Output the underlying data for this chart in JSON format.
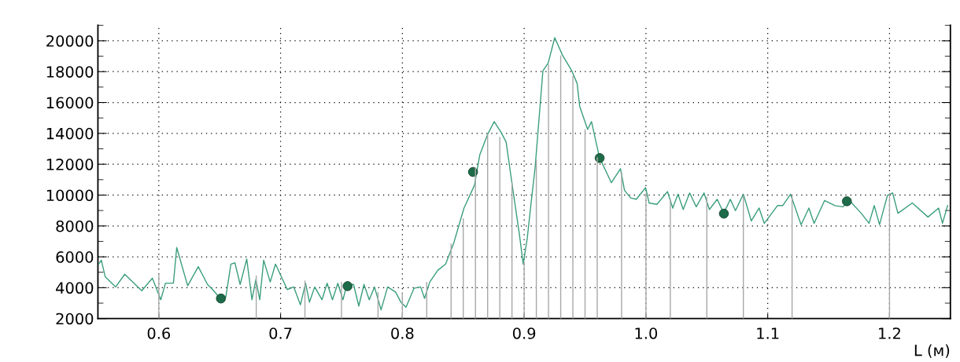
{
  "chart_data": {
    "type": "line",
    "xlabel": "L (м)",
    "xlim": [
      0.55,
      1.25
    ],
    "xticks": [
      {
        "value": 0.6,
        "label": "0.6"
      },
      {
        "value": 0.7,
        "label": "0.7"
      },
      {
        "value": 0.8,
        "label": "0.8"
      },
      {
        "value": 0.9,
        "label": "0.9"
      },
      {
        "value": 1.0,
        "label": "1.0"
      },
      {
        "value": 1.1,
        "label": "1.1"
      },
      {
        "value": 1.2,
        "label": "1.2"
      }
    ],
    "ylim": [
      2000,
      21000
    ],
    "yticks": [
      2000,
      4000,
      6000,
      8000,
      10000,
      12000,
      14000,
      16000,
      18000,
      20000
    ],
    "grid": true,
    "legend": false,
    "series": [
      {
        "type": "bar",
        "color": "#a8a8a8",
        "x": [
          0.6,
          0.68,
          0.72,
          0.75,
          0.78,
          0.8,
          0.82,
          0.84,
          0.85,
          0.86,
          0.87,
          0.88,
          0.89,
          0.9,
          0.91,
          0.92,
          0.93,
          0.94,
          0.95,
          0.96,
          0.98,
          1.0,
          1.02,
          1.05,
          1.08,
          1.12,
          1.2
        ],
        "values": [
          4870,
          4790,
          4460,
          4370,
          3720,
          3720,
          4370,
          6850,
          8500,
          11790,
          13940,
          13770,
          10800,
          5690,
          12290,
          18470,
          19050,
          17730,
          14260,
          12450,
          11460,
          10140,
          9730,
          9900,
          9980,
          9980,
          10140
        ]
      },
      {
        "marker": "none",
        "line_style": "solid",
        "color": "#3a9e7c",
        "x": [
          0.5506,
          0.5528,
          0.556,
          0.5646,
          0.572,
          0.586,
          0.5947,
          0.6016,
          0.6055,
          0.612,
          0.6147,
          0.6237,
          0.6324,
          0.64,
          0.6442,
          0.6496,
          0.655,
          0.6592,
          0.6625,
          0.6668,
          0.6722,
          0.6765,
          0.6797,
          0.6829,
          0.6861,
          0.6915,
          0.6958,
          0.7055,
          0.7108,
          0.7163,
          0.7205,
          0.7237,
          0.728,
          0.734,
          0.7382,
          0.7426,
          0.747,
          0.7512,
          0.7545,
          0.7599,
          0.7642,
          0.7685,
          0.7728,
          0.7771,
          0.7825,
          0.7879,
          0.7944,
          0.7988,
          0.803,
          0.8095,
          0.815,
          0.8182,
          0.8225,
          0.829,
          0.8355,
          0.842,
          0.8506,
          0.8592,
          0.8636,
          0.87,
          0.8754,
          0.8808,
          0.8852,
          0.8905,
          0.896,
          0.8992,
          0.9025,
          0.9057,
          0.909,
          0.9122,
          0.9154,
          0.9197,
          0.9251,
          0.9316,
          0.9391,
          0.9435,
          0.9456,
          0.9521,
          0.9553,
          0.9618,
          0.9716,
          0.9791,
          0.9824,
          0.9875,
          0.9921,
          0.9997,
          1.0026,
          1.009,
          1.0177,
          1.022,
          1.0263,
          1.0306,
          1.0359,
          1.0413,
          1.0477,
          1.0521,
          1.0585,
          1.0639,
          1.0693,
          1.0735,
          1.08,
          1.0865,
          1.0929,
          1.0972,
          1.108,
          1.1123,
          1.1187,
          1.1274,
          1.1338,
          1.1381,
          1.1467,
          1.1553,
          1.1617,
          1.1671,
          1.1768,
          1.1832,
          1.1875,
          1.1918,
          1.1983,
          1.2026,
          1.2069,
          1.2187,
          1.2316,
          1.2403,
          1.2435,
          1.2477
        ],
        "values": [
          5530,
          5780,
          4700,
          4050,
          4870,
          3800,
          4620,
          3220,
          4290,
          4290,
          6600,
          4130,
          5360,
          4210,
          3880,
          3380,
          3380,
          5530,
          5610,
          4210,
          5860,
          3220,
          4540,
          3220,
          5780,
          4370,
          5530,
          3880,
          4050,
          2890,
          4290,
          3060,
          4050,
          3220,
          4290,
          3220,
          4290,
          3220,
          4210,
          4210,
          2810,
          4210,
          3220,
          4050,
          2560,
          4050,
          3720,
          3060,
          2730,
          3960,
          4050,
          3310,
          4370,
          5120,
          5530,
          6850,
          9160,
          10640,
          12620,
          13940,
          14760,
          14100,
          13440,
          10480,
          7510,
          5530,
          7180,
          9490,
          11790,
          14930,
          18060,
          18550,
          20200,
          19050,
          18060,
          17230,
          15750,
          14260,
          14760,
          12450,
          10800,
          11710,
          10310,
          9810,
          9730,
          10480,
          9490,
          9400,
          10230,
          9160,
          10060,
          9070,
          10140,
          9240,
          10140,
          9070,
          9730,
          8820,
          9730,
          8990,
          10060,
          8330,
          9160,
          8170,
          9320,
          9320,
          10060,
          8080,
          9160,
          8170,
          9650,
          9320,
          9240,
          9650,
          8820,
          8170,
          9320,
          8080,
          9980,
          10140,
          8820,
          9490,
          8580,
          9160,
          8170,
          9320
        ]
      },
      {
        "type": "scatter",
        "marker": "circle",
        "color": "#1d6b48",
        "x": [
          0.651,
          0.755,
          0.858,
          0.962,
          1.064,
          1.165
        ],
        "values": [
          3300,
          4100,
          11500,
          12400,
          8800,
          9600
        ]
      }
    ]
  }
}
